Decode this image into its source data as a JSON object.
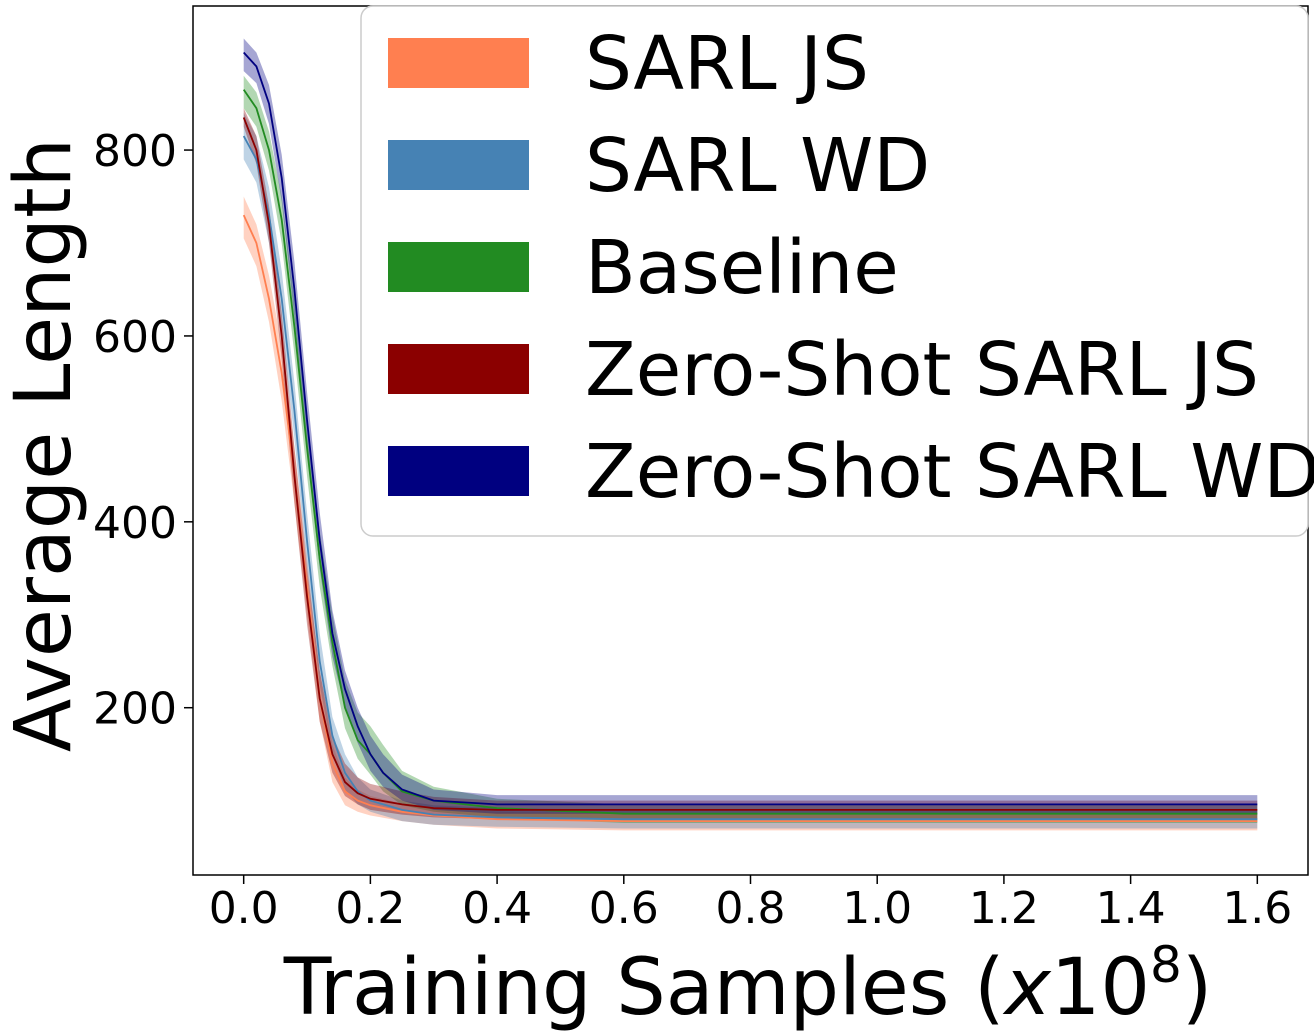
{
  "chart_data": {
    "type": "line",
    "title": "",
    "xlabel_main": "Training Samples (",
    "xlabel_italic": "x",
    "xlabel_num": "10",
    "xlabel_sup": "8",
    "xlabel_close": ")",
    "ylabel": "Average Length",
    "xlim": [
      -0.08,
      1.68
    ],
    "ylim": [
      20,
      955
    ],
    "xticks": [
      0.0,
      0.2,
      0.4,
      0.6,
      0.8,
      1.0,
      1.2,
      1.4,
      1.6
    ],
    "xtick_labels": [
      "0.0",
      "0.2",
      "0.4",
      "0.6",
      "0.8",
      "1.0",
      "1.2",
      "1.4",
      "1.6"
    ],
    "yticks": [
      200,
      400,
      600,
      800
    ],
    "ytick_labels": [
      "200",
      "400",
      "600",
      "800"
    ],
    "grid": false,
    "legend_position": "top-right",
    "series": [
      {
        "name": "SARL JS",
        "color": "#ff7f50",
        "x": [
          0.0,
          0.02,
          0.04,
          0.06,
          0.08,
          0.1,
          0.12,
          0.14,
          0.16,
          0.18,
          0.2,
          0.25,
          0.3,
          0.4,
          0.6,
          1.0,
          1.6
        ],
        "mean": [
          730,
          700,
          640,
          560,
          450,
          330,
          210,
          140,
          110,
          100,
          95,
          88,
          84,
          80,
          78,
          78,
          78
        ],
        "upper": [
          750,
          720,
          665,
          590,
          480,
          360,
          240,
          160,
          125,
          112,
          105,
          97,
          92,
          88,
          86,
          86,
          86
        ],
        "lower": [
          705,
          675,
          615,
          530,
          420,
          300,
          185,
          120,
          95,
          88,
          84,
          78,
          74,
          70,
          68,
          68,
          68
        ]
      },
      {
        "name": "SARL WD",
        "color": "#4682b4",
        "x": [
          0.0,
          0.02,
          0.04,
          0.06,
          0.08,
          0.1,
          0.12,
          0.14,
          0.16,
          0.18,
          0.2,
          0.25,
          0.3,
          0.4,
          0.6,
          1.0,
          1.6
        ],
        "mean": [
          815,
          790,
          730,
          640,
          520,
          380,
          250,
          170,
          130,
          110,
          100,
          90,
          85,
          82,
          80,
          80,
          80
        ],
        "upper": [
          840,
          815,
          760,
          670,
          550,
          410,
          280,
          190,
          150,
          125,
          112,
          100,
          95,
          92,
          90,
          90,
          90
        ],
        "lower": [
          790,
          765,
          700,
          610,
          490,
          350,
          225,
          150,
          112,
          96,
          88,
          78,
          74,
          72,
          70,
          70,
          70
        ]
      },
      {
        "name": "Baseline",
        "color": "#228b22",
        "x": [
          0.0,
          0.02,
          0.04,
          0.06,
          0.08,
          0.1,
          0.12,
          0.14,
          0.16,
          0.18,
          0.2,
          0.22,
          0.25,
          0.3,
          0.4,
          0.6,
          1.0,
          1.6
        ],
        "mean": [
          865,
          845,
          800,
          725,
          610,
          480,
          360,
          270,
          200,
          165,
          150,
          130,
          110,
          100,
          92,
          86,
          86,
          86
        ],
        "upper": [
          880,
          862,
          820,
          750,
          640,
          510,
          390,
          300,
          230,
          195,
          180,
          160,
          132,
          115,
          102,
          96,
          96,
          96
        ],
        "lower": [
          845,
          825,
          778,
          700,
          580,
          450,
          330,
          245,
          178,
          145,
          128,
          110,
          95,
          88,
          82,
          76,
          76,
          76
        ]
      },
      {
        "name": "Zero-Shot SARL JS",
        "color": "#8b0000",
        "x": [
          0.0,
          0.02,
          0.04,
          0.06,
          0.08,
          0.1,
          0.12,
          0.14,
          0.16,
          0.18,
          0.2,
          0.25,
          0.3,
          0.4,
          0.6,
          1.0,
          1.6
        ],
        "mean": [
          835,
          800,
          720,
          600,
          450,
          320,
          210,
          150,
          120,
          108,
          102,
          96,
          92,
          90,
          90,
          90,
          90
        ],
        "upper": [
          845,
          815,
          740,
          625,
          480,
          350,
          240,
          170,
          140,
          125,
          118,
          110,
          104,
          100,
          100,
          100,
          100
        ],
        "lower": [
          825,
          785,
          700,
          575,
          420,
          290,
          185,
          130,
          105,
          96,
          90,
          85,
          82,
          80,
          80,
          80,
          80
        ]
      },
      {
        "name": "Zero-Shot SARL WD",
        "color": "#000080",
        "x": [
          0.0,
          0.02,
          0.04,
          0.06,
          0.08,
          0.1,
          0.12,
          0.14,
          0.16,
          0.18,
          0.2,
          0.22,
          0.25,
          0.3,
          0.4,
          0.6,
          1.0,
          1.6
        ],
        "mean": [
          905,
          890,
          850,
          770,
          650,
          510,
          380,
          280,
          220,
          180,
          150,
          130,
          112,
          100,
          96,
          96,
          96,
          96
        ],
        "upper": [
          920,
          905,
          870,
          795,
          680,
          540,
          410,
          305,
          240,
          200,
          170,
          150,
          128,
          112,
          106,
          106,
          106,
          106
        ],
        "lower": [
          885,
          872,
          828,
          745,
          620,
          480,
          350,
          255,
          200,
          162,
          132,
          115,
          100,
          90,
          86,
          86,
          86,
          86
        ]
      }
    ]
  }
}
